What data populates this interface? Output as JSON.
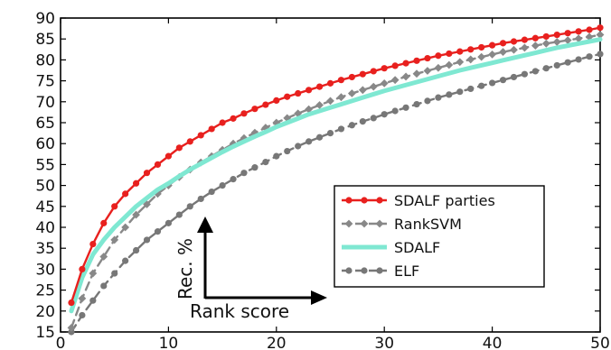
{
  "chart_data": {
    "type": "line",
    "title": "",
    "xlabel": "",
    "ylabel": "",
    "xlim": [
      0,
      50
    ],
    "ylim": [
      15,
      90
    ],
    "x_ticks": [
      "0",
      "10",
      "20",
      "30",
      "40",
      "50"
    ],
    "y_ticks": [
      "15",
      "20",
      "25",
      "30",
      "35",
      "40",
      "45",
      "50",
      "55",
      "60",
      "65",
      "70",
      "75",
      "80",
      "85",
      "90"
    ],
    "grid": false,
    "legend_position": "lower-right",
    "x": [
      1,
      2,
      3,
      4,
      5,
      6,
      7,
      8,
      9,
      10,
      11,
      12,
      13,
      14,
      15,
      16,
      17,
      18,
      19,
      20,
      21,
      22,
      23,
      24,
      25,
      26,
      27,
      28,
      29,
      30,
      31,
      32,
      33,
      34,
      35,
      36,
      37,
      38,
      39,
      40,
      41,
      42,
      43,
      44,
      45,
      46,
      47,
      48,
      49,
      50
    ],
    "series": [
      {
        "name": "SDALF parties",
        "color": "#e8201e",
        "dash": "solid",
        "marker": "circle",
        "values": [
          22,
          30,
          36,
          41,
          45,
          48,
          50.5,
          53,
          55,
          57,
          59,
          60.5,
          62,
          63.5,
          65,
          66,
          67.2,
          68.3,
          69.3,
          70.3,
          71.2,
          72,
          72.8,
          73.6,
          74.4,
          75.2,
          75.9,
          76.6,
          77.3,
          78,
          78.6,
          79.2,
          79.8,
          80.4,
          81,
          81.5,
          82,
          82.5,
          83,
          83.5,
          84,
          84.4,
          84.8,
          85.2,
          85.6,
          86,
          86.4,
          86.8,
          87.2,
          87.7
        ]
      },
      {
        "name": "RankSVM",
        "color": "#888888",
        "dash": "dashed",
        "marker": "diamond",
        "values": [
          16,
          23,
          29,
          33,
          37,
          40,
          43,
          45.5,
          48,
          50,
          52,
          53.8,
          55.5,
          57,
          58.5,
          60,
          61.3,
          62.6,
          63.8,
          65,
          66.1,
          67.2,
          68.2,
          69.2,
          70.2,
          71.1,
          72,
          72.8,
          73.6,
          74.4,
          75.2,
          76,
          76.7,
          77.4,
          78.1,
          78.8,
          79.5,
          80.1,
          80.7,
          81.3,
          81.9,
          82.4,
          82.9,
          83.4,
          83.9,
          84.3,
          84.7,
          85.1,
          85.5,
          86
        ]
      },
      {
        "name": "SDALF",
        "color": "#7fe8d2",
        "dash": "solid",
        "marker": "none",
        "values": [
          20,
          28,
          33.5,
          37,
          40,
          42.5,
          45,
          47,
          49,
          50.5,
          52.2,
          53.8,
          55.2,
          56.6,
          58,
          59.3,
          60.5,
          61.7,
          62.8,
          64,
          65,
          66,
          67,
          67.8,
          68.6,
          69.4,
          70.2,
          71,
          71.8,
          72.6,
          73.3,
          74,
          74.7,
          75.4,
          76.1,
          76.8,
          77.5,
          78.1,
          78.7,
          79.3,
          79.9,
          80.5,
          81.1,
          81.7,
          82.3,
          82.9,
          83.4,
          83.9,
          84.4,
          84.9
        ]
      },
      {
        "name": "ELF",
        "color": "#777777",
        "dash": "dashed",
        "marker": "circle",
        "values": [
          15,
          19,
          22.5,
          26,
          29,
          32,
          34.5,
          37,
          39,
          41,
          43,
          45,
          46.8,
          48.5,
          50,
          51.5,
          53,
          54.3,
          55.6,
          57,
          58.2,
          59.4,
          60.5,
          61.5,
          62.5,
          63.5,
          64.4,
          65.3,
          66.1,
          67,
          67.8,
          68.6,
          69.4,
          70.2,
          71,
          71.7,
          72.4,
          73.1,
          73.8,
          74.5,
          75.2,
          75.9,
          76.6,
          77.3,
          78,
          78.7,
          79.4,
          80.1,
          80.8,
          81.4
        ]
      }
    ],
    "annotations": {
      "vertical_arrow_label": "Rec. %",
      "horizontal_arrow_label": "Rank score"
    }
  }
}
